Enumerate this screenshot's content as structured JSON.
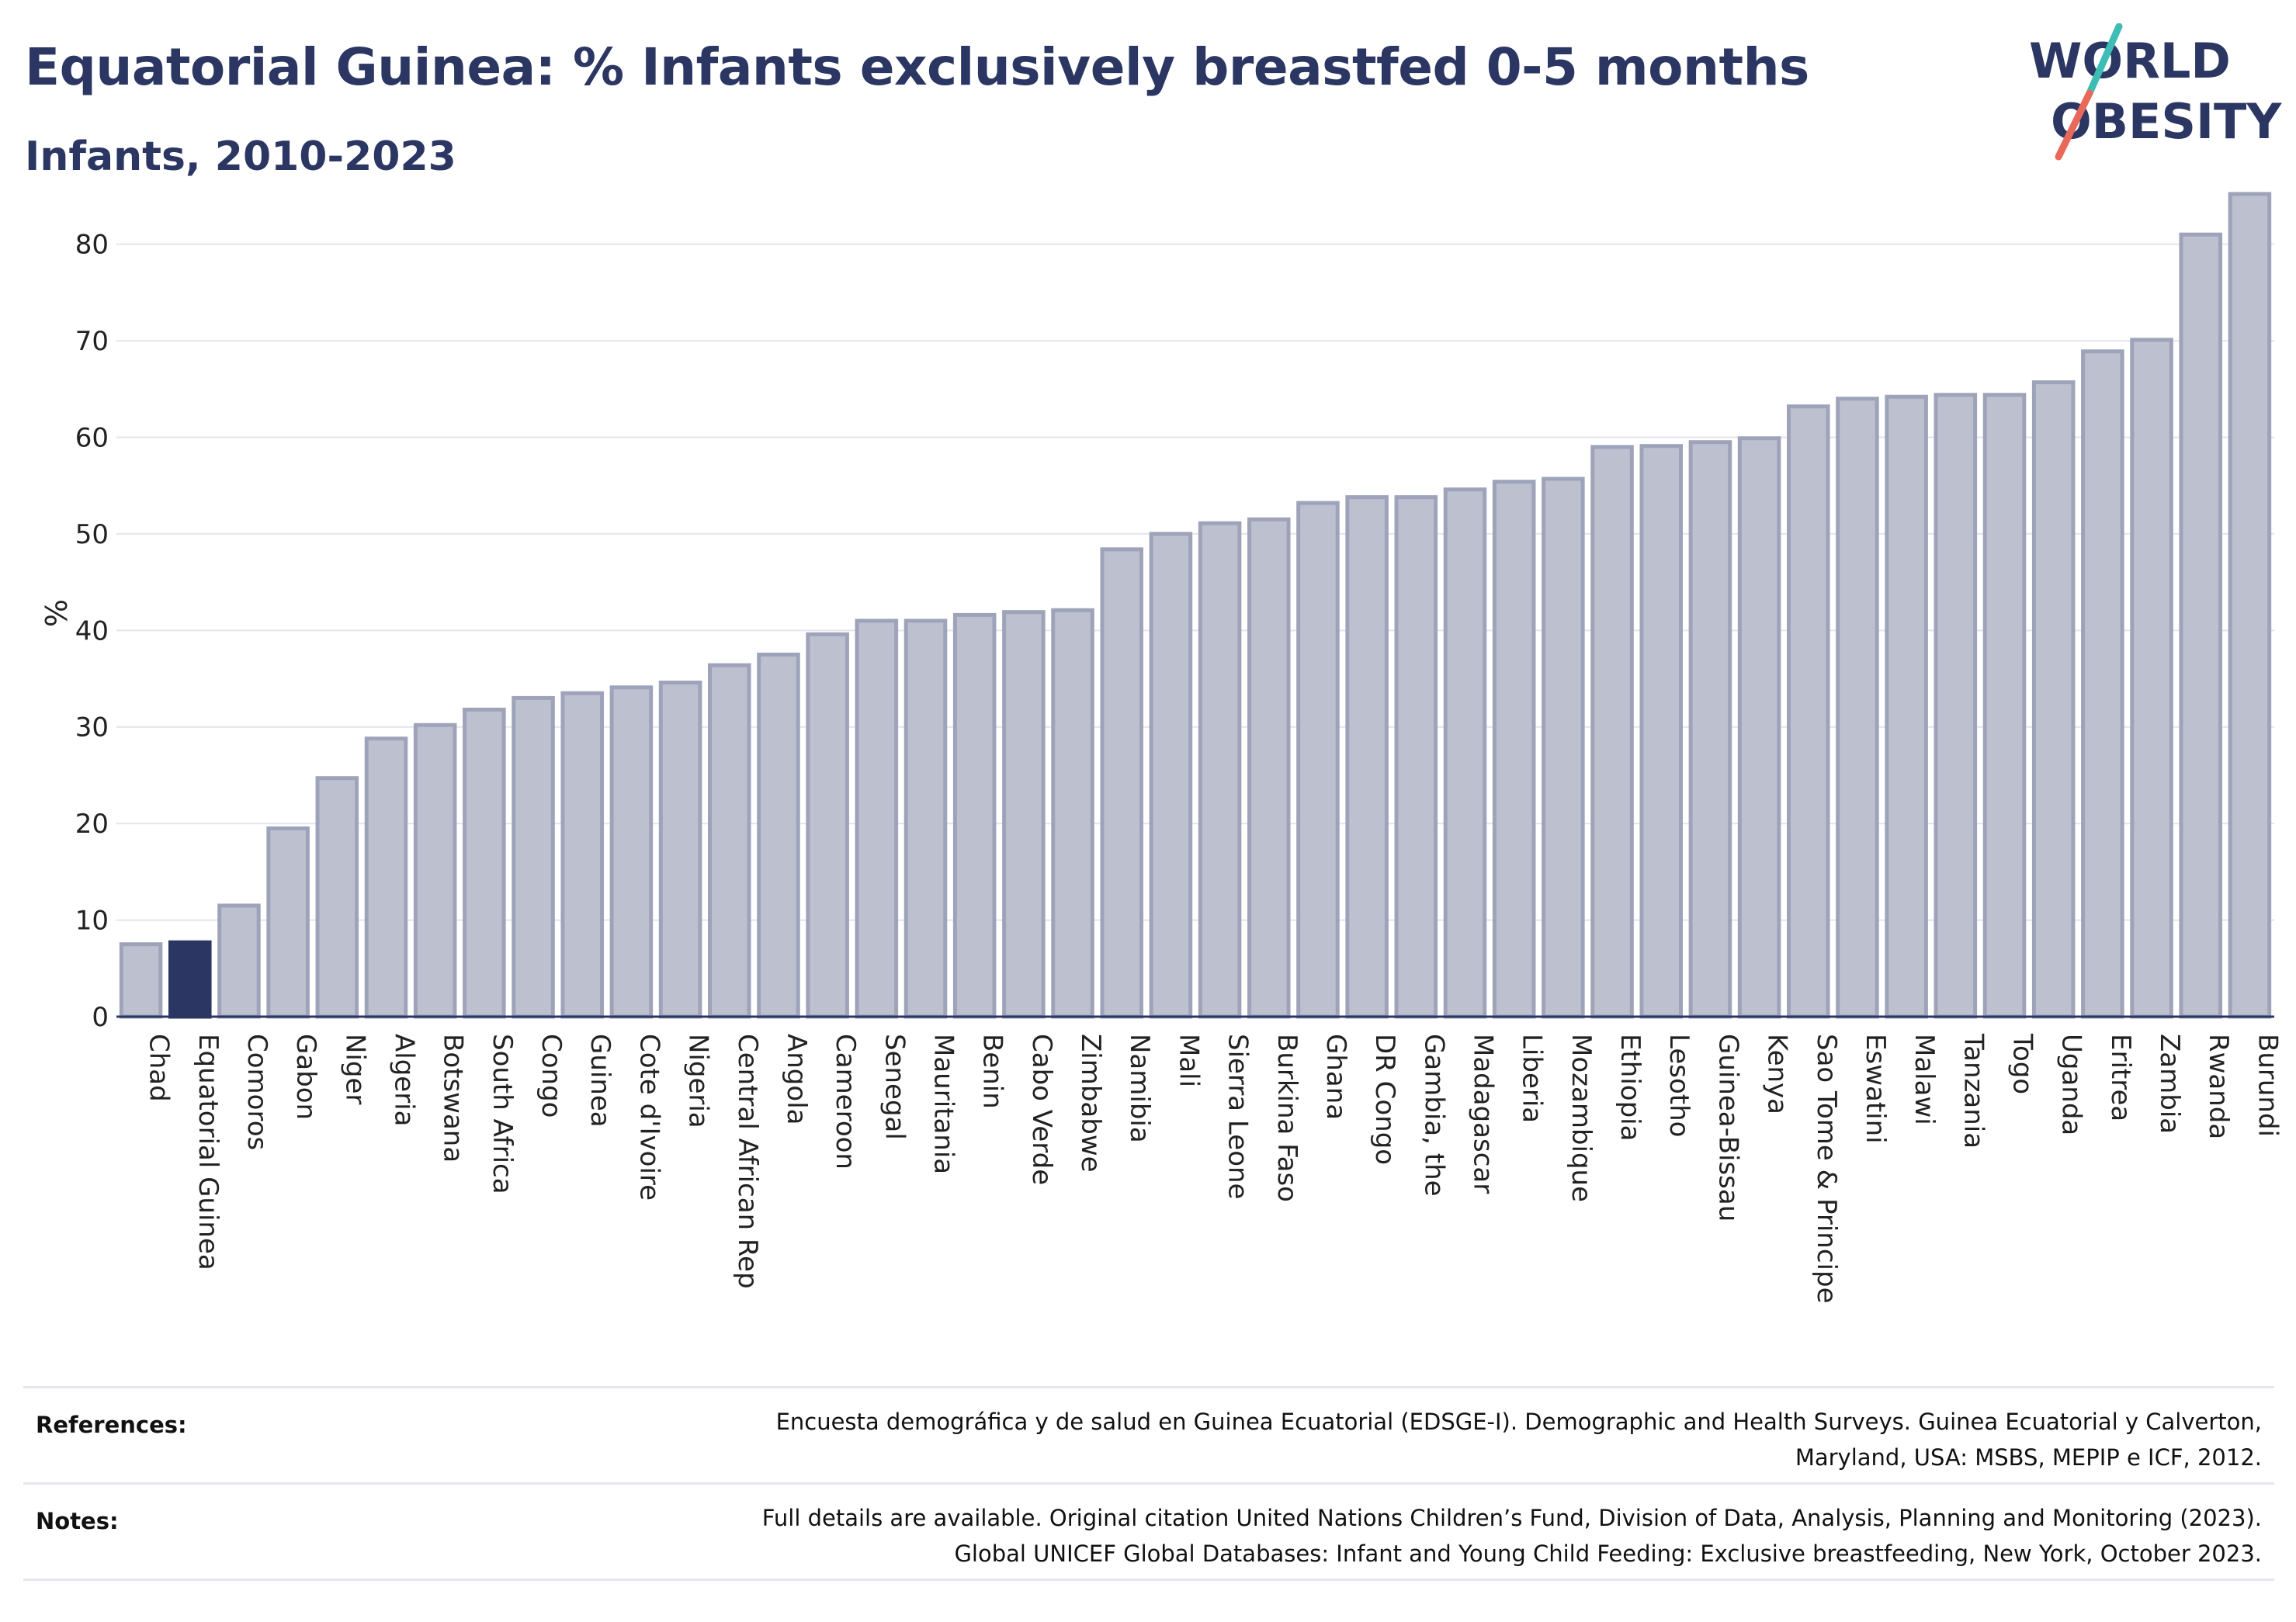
{
  "header": {
    "title": "Equatorial Guinea: % Infants exclusively breastfed 0-5 months",
    "subtitle": "Infants, 2010-2023"
  },
  "logo": {
    "line1": "WORLD",
    "line2": "OBESITY",
    "text_color": "#2b3663",
    "slash_colors": [
      "#3dbdb5",
      "#e8695a"
    ]
  },
  "colors": {
    "bar_fill": "#bcc0cf",
    "bar_stroke": "#9ea3ba",
    "highlight": "#2b3663",
    "grid": "#e4e4ec",
    "axis": "#2b3663"
  },
  "chart_data": {
    "type": "bar",
    "ylabel": "%",
    "ylim": [
      0,
      85
    ],
    "yticks": [
      0,
      10,
      20,
      30,
      40,
      50,
      60,
      70,
      80
    ],
    "grid": true,
    "highlight": "Equatorial Guinea",
    "categories": [
      "Chad",
      "Equatorial Guinea",
      "Comoros",
      "Gabon",
      "Niger",
      "Algeria",
      "Botswana",
      "South Africa",
      "Congo",
      "Guinea",
      "Cote d'Ivoire",
      "Nigeria",
      "Central African Rep",
      "Angola",
      "Cameroon",
      "Senegal",
      "Mauritania",
      "Benin",
      "Cabo Verde",
      "Zimbabwe",
      "Namibia",
      "Mali",
      "Sierra Leone",
      "Burkina Faso",
      "Ghana",
      "DR Congo",
      "Gambia, the",
      "Madagascar",
      "Liberia",
      "Mozambique",
      "Ethiopia",
      "Lesotho",
      "Guinea-Bissau",
      "Kenya",
      "Sao Tome & Principe",
      "Eswatini",
      "Malawi",
      "Tanzania",
      "Togo",
      "Uganda",
      "Eritrea",
      "Zambia",
      "Rwanda",
      "Burundi"
    ],
    "values": [
      7.5,
      7.7,
      11.5,
      19.5,
      24.7,
      28.8,
      30.2,
      31.8,
      33.0,
      33.5,
      34.1,
      34.6,
      36.4,
      37.5,
      39.6,
      41.0,
      41.0,
      41.6,
      41.9,
      42.1,
      48.4,
      50.0,
      51.1,
      51.5,
      53.2,
      53.8,
      53.8,
      54.6,
      55.4,
      55.7,
      59.0,
      59.1,
      59.5,
      59.9,
      63.2,
      64.0,
      64.2,
      64.4,
      64.4,
      65.7,
      68.9,
      70.1,
      81.0,
      85.2
    ]
  },
  "footer": {
    "references_label": "References:",
    "references_line1": "Encuesta demográfica y de salud en Guinea Ecuatorial (EDSGE-I). Demographic and Health Surveys. Guinea Ecuatorial y Calverton,",
    "references_line2": "Maryland, USA: MSBS, MEPIP e ICF, 2012.",
    "notes_label": "Notes:",
    "notes_line1": "Full details are available. Original citation United Nations Children’s Fund, Division of Data, Analysis, Planning and Monitoring (2023).",
    "notes_line2": "Global UNICEF Global Databases: Infant and Young Child Feeding: Exclusive breastfeeding, New York, October 2023."
  }
}
